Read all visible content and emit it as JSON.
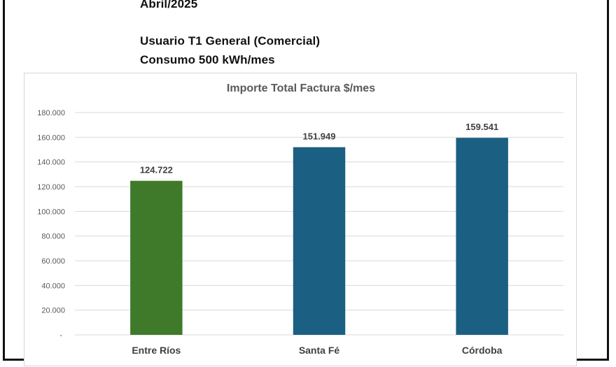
{
  "header": {
    "period": "Abril/2025",
    "user_type": "Usuario T1 General (Comercial)",
    "consumption": "Consumo  500 kWh/mes"
  },
  "chart_data": {
    "type": "bar",
    "title": "Importe Total  Factura $/mes",
    "xlabel": "",
    "ylabel": "",
    "categories": [
      "Entre Ríos",
      "Santa Fé",
      "Córdoba"
    ],
    "values": [
      124722,
      151949,
      159541
    ],
    "data_labels": [
      "124.722",
      "151.949",
      "159.541"
    ],
    "bar_colors": [
      "#3f7a2a",
      "#1b5f82",
      "#1b5f82"
    ],
    "ylim": [
      0,
      180000
    ],
    "yticks": [
      0,
      20000,
      40000,
      60000,
      80000,
      100000,
      120000,
      140000,
      160000,
      180000
    ],
    "ytick_labels": [
      "-",
      "20.000",
      "40.000",
      "60.000",
      "80.000",
      "100.000",
      "120.000",
      "140.000",
      "160.000",
      "180.000"
    ],
    "grid": true,
    "legend": "none"
  }
}
